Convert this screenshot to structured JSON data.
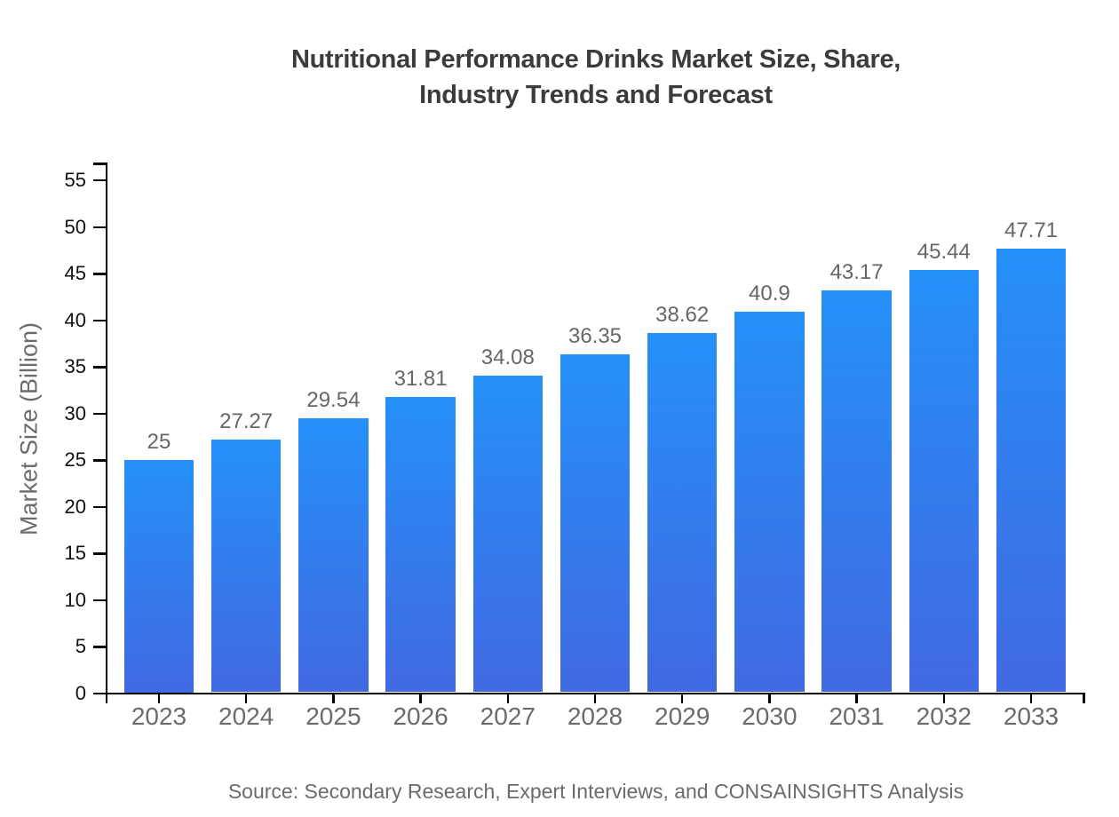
{
  "page": {
    "background": "#ffffff"
  },
  "chart_data": {
    "type": "bar",
    "title_lines": [
      "Nutritional Performance Drinks Market Size, Share,",
      "Industry Trends and Forecast"
    ],
    "ylabel": "Market Size (Billion)",
    "xlabel": "",
    "source": "Source: Secondary Research, Expert Interviews, and CONSAINSIGHTS Analysis",
    "categories": [
      "2023",
      "2024",
      "2025",
      "2026",
      "2027",
      "2028",
      "2029",
      "2030",
      "2031",
      "2032",
      "2033"
    ],
    "values": [
      25,
      27.27,
      29.54,
      31.81,
      34.08,
      36.35,
      38.62,
      40.9,
      43.17,
      45.44,
      47.71
    ],
    "value_labels": [
      "25",
      "27.27",
      "29.54",
      "31.81",
      "34.08",
      "36.35",
      "38.62",
      "40.9",
      "43.17",
      "45.44",
      "47.71"
    ],
    "yticks": [
      0,
      5,
      10,
      15,
      20,
      25,
      30,
      35,
      40,
      45,
      50,
      55
    ],
    "ylim": [
      0,
      57
    ],
    "grid": false,
    "legend": "none",
    "colors": {
      "bar_top": "#2590f9",
      "bar_bottom": "#4169e1",
      "axis": "#000000",
      "y_tick_label": "#101010",
      "x_tick_label": "#6b6b6b",
      "value_label": "#666666",
      "title": "#3b3b3b",
      "muted_text": "#6b6b6b",
      "background": "#ffffff"
    }
  }
}
